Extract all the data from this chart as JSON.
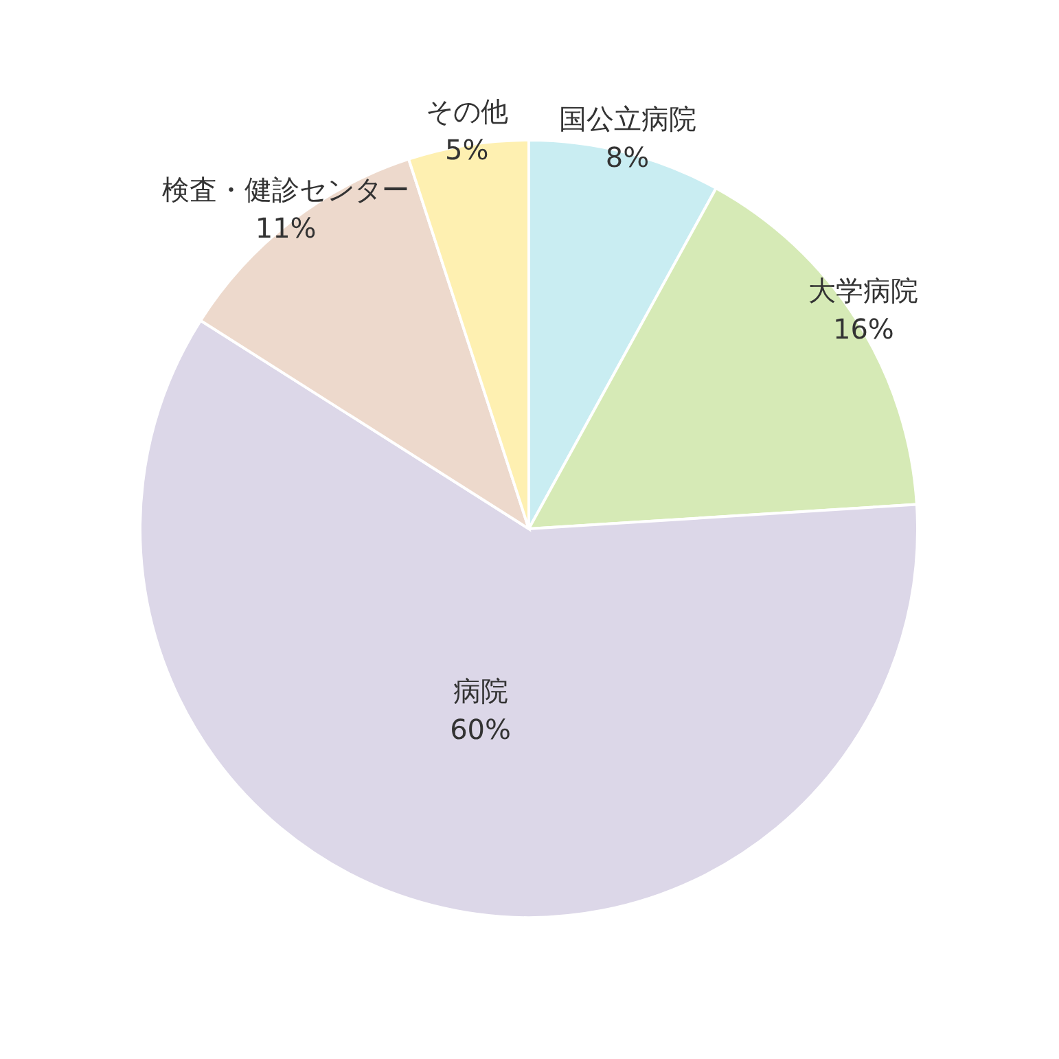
{
  "chart_data": {
    "type": "pie",
    "categories": [
      "国公立病院",
      "大学病院",
      "病院",
      "検査・健診センター",
      "その他"
    ],
    "values": [
      8,
      16,
      60,
      11,
      5
    ],
    "colors": [
      "#c9edf2",
      "#d6eab6",
      "#dcd7e8",
      "#edd9cc",
      "#fef0b1"
    ],
    "value_labels": [
      "8%",
      "16%",
      "60%",
      "11%",
      "5%"
    ]
  }
}
